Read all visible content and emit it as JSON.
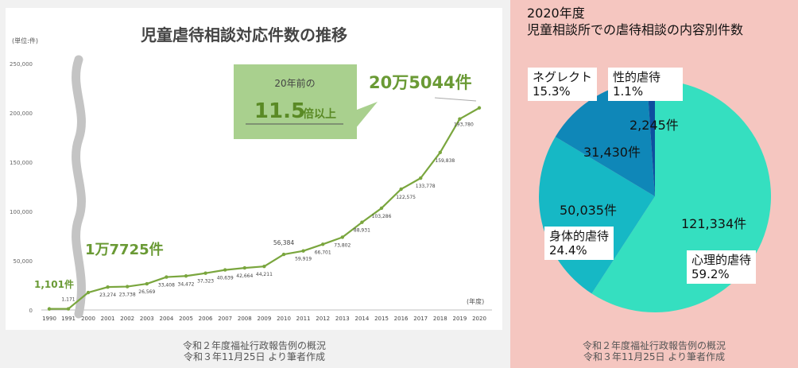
{
  "line_title": "児童虐待相談対応件数の推移",
  "unit_label": "(単位:件)",
  "year_label": "(年度)",
  "callouts": {
    "first": "1,101件",
    "mid": "1万7725件",
    "last": "20万5044件",
    "box_line1": "20年前の",
    "box_big": "11.5",
    "box_small": "倍以上"
  },
  "left_caption": [
    "令和２年度福祉行政報告例の概況",
    "令和３年11月25日 より筆者作成"
  ],
  "right_caption": [
    "令和２年度福祉行政報告例の概況",
    "令和３年11月25日 より筆者作成"
  ],
  "pie_title": [
    "2020年度",
    "児童相談所での虐待相談の内容別件数"
  ],
  "colors": {
    "line": "#7aa63e",
    "callout_text": "#6a9a35",
    "callout_box": "#a9d08e",
    "pie_psych": "#35dfc0",
    "pie_physical": "#16b8c5",
    "pie_neglect": "#0f87b8",
    "pie_sexual": "#0d4f9f"
  },
  "chart_data": [
    {
      "type": "line",
      "title": "児童虐待相談対応件数の推移",
      "ylabel": "(単位:件)",
      "xlabel": "(年度)",
      "ylim": [
        0,
        250000
      ],
      "yticks": [
        "0",
        "50,000",
        "100,000",
        "150,000",
        "200,000",
        "250,000"
      ],
      "grid": false,
      "axis_break_between": [
        "1991",
        "2000"
      ],
      "x": [
        "1990",
        "1991",
        "2000",
        "2001",
        "2002",
        "2003",
        "2004",
        "2005",
        "2006",
        "2007",
        "2008",
        "2009",
        "2010",
        "2011",
        "2012",
        "2013",
        "2014",
        "2015",
        "2016",
        "2017",
        "2018",
        "2019",
        "2020"
      ],
      "values": [
        1101,
        1171,
        17725,
        23274,
        23738,
        26569,
        33408,
        34472,
        37323,
        40639,
        42664,
        44211,
        56384,
        59919,
        66701,
        73802,
        88931,
        103286,
        122575,
        133778,
        159838,
        193780,
        205044
      ],
      "data_labels": [
        "",
        "1,171",
        "",
        "23,274",
        "23,738",
        "26,569",
        "33,408",
        "34,472",
        "37,323",
        "40,639",
        "42,664",
        "44,211",
        "56,384",
        "59,919",
        "66,701",
        "73,802",
        "88,931",
        "103,286",
        "122,575",
        "133,778",
        "159,838",
        "193,780",
        ""
      ]
    },
    {
      "type": "pie",
      "title": "2020年度 児童相談所での虐待相談の内容別件数",
      "slices": [
        {
          "name": "心理的虐待",
          "value": 121334,
          "value_label": "121,334件",
          "percent": "59.2%"
        },
        {
          "name": "身体的虐待",
          "value": 50035,
          "value_label": "50,035件",
          "percent": "24.4%"
        },
        {
          "name": "ネグレクト",
          "value": 31430,
          "value_label": "31,430件",
          "percent": "15.3%"
        },
        {
          "name": "性的虐待",
          "value": 2245,
          "value_label": "2,245件",
          "percent": "1.1%"
        }
      ]
    }
  ]
}
